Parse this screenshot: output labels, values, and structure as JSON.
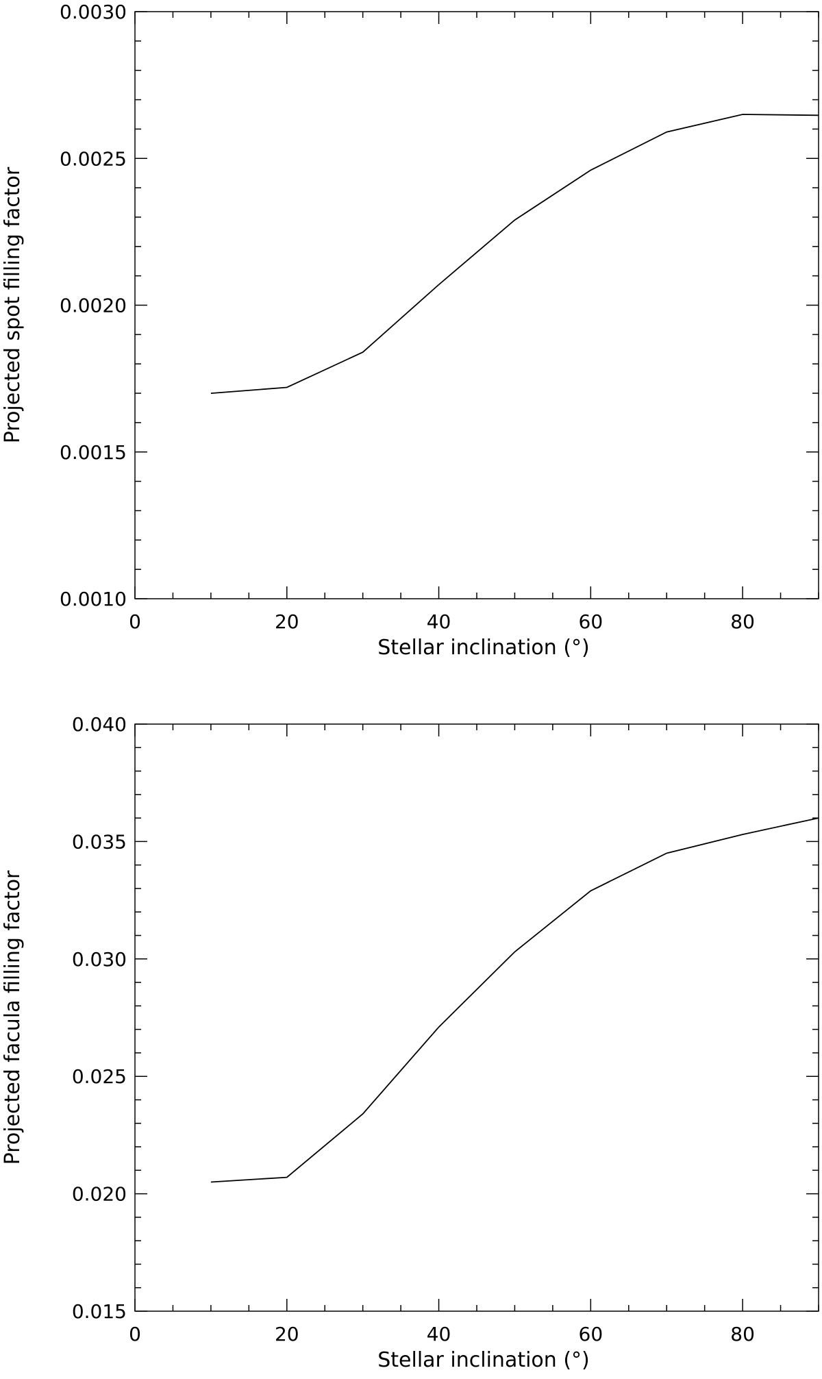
{
  "chart_data": [
    {
      "type": "line",
      "title": "",
      "xlabel": "Stellar inclination (°)",
      "ylabel": "Projected spot filling factor",
      "xlim": [
        0,
        90
      ],
      "ylim": [
        0.001,
        0.003
      ],
      "x_ticks": [
        0,
        20,
        40,
        60,
        80
      ],
      "x_tick_labels": [
        "0",
        "20",
        "40",
        "60",
        "80"
      ],
      "y_ticks": [
        0.001,
        0.0015,
        0.002,
        0.0025,
        0.003
      ],
      "y_tick_labels": [
        "0.0010",
        "0.0015",
        "0.0020",
        "0.0025",
        "0.0030"
      ],
      "grid": false,
      "legend": "none",
      "line_color": "#000000",
      "x": [
        10,
        20,
        30,
        40,
        50,
        60,
        70,
        80,
        90
      ],
      "series": [
        {
          "values": [
            0.0017,
            0.00172,
            0.00184,
            0.00207,
            0.00229,
            0.00246,
            0.00259,
            0.00265,
            0.002647
          ]
        }
      ]
    },
    {
      "type": "line",
      "title": "",
      "xlabel": "Stellar inclination (°)",
      "ylabel": "Projected facula filling factor",
      "xlim": [
        0,
        90
      ],
      "ylim": [
        0.015,
        0.04
      ],
      "x_ticks": [
        0,
        20,
        40,
        60,
        80
      ],
      "x_tick_labels": [
        "0",
        "20",
        "40",
        "60",
        "80"
      ],
      "y_ticks": [
        0.015,
        0.02,
        0.025,
        0.03,
        0.035,
        0.04
      ],
      "y_tick_labels": [
        "0.015",
        "0.020",
        "0.025",
        "0.030",
        "0.035",
        "0.040"
      ],
      "grid": false,
      "legend": "none",
      "line_color": "#000000",
      "x": [
        10,
        20,
        30,
        40,
        50,
        60,
        70,
        80,
        90
      ],
      "series": [
        {
          "values": [
            0.0205,
            0.0207,
            0.0234,
            0.0271,
            0.0303,
            0.0329,
            0.0345,
            0.0353,
            0.036
          ]
        }
      ]
    }
  ]
}
